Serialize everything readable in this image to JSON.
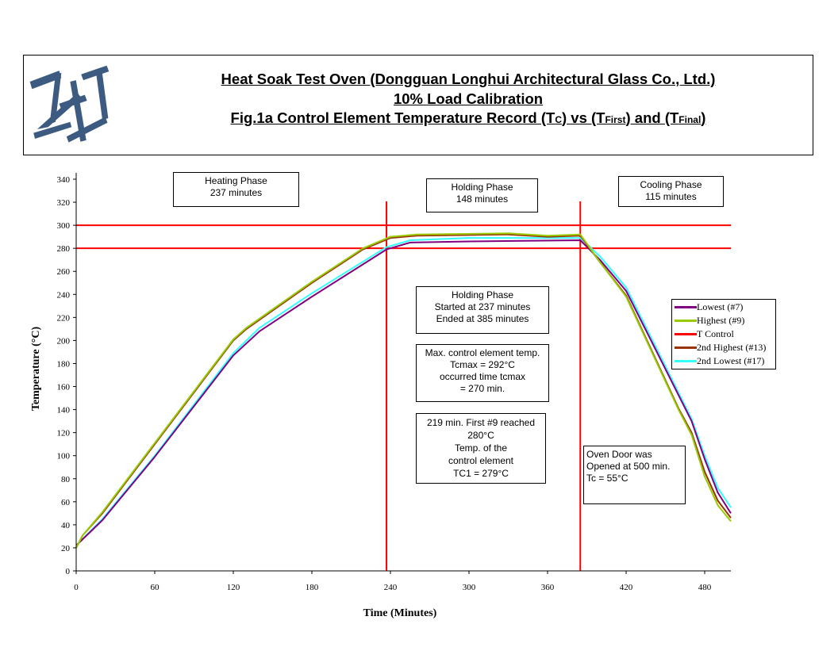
{
  "header": {
    "logo_text": "JAS",
    "title_line1": "Heat Soak Test Oven (Dongguan Longhui Architectural Glass Co., Ltd.)",
    "title_line2": "10% Load Calibration",
    "title_line3": {
      "a": "Fig.1a Control Element Temperature Record (T",
      "b": "C",
      "c": ") vs (T",
      "d": "First",
      "e": ") and (T",
      "f": "Final",
      "g": ")"
    }
  },
  "annotations": {
    "heating": [
      "Heating Phase",
      "237 minutes"
    ],
    "holding": [
      "Holding Phase",
      "148 minutes"
    ],
    "cooling": [
      "Cooling Phase",
      "115 minutes"
    ],
    "holding_info": [
      "Holding Phase",
      "Started at 237 minutes",
      "Ended at 385 minutes"
    ],
    "max_temp": [
      "Max. control element temp.",
      "Tcmax = 292°C",
      "occurred time tcmax",
      "= 270 min."
    ],
    "first_reach": [
      "219 min. First #9 reached",
      "280°C",
      "Temp. of the",
      "control element",
      "TC1 =  279°C"
    ],
    "oven_door": [
      "Oven Door was",
      "Opened at 500 min.",
      "Tc = 55°C"
    ]
  },
  "chart_data": {
    "type": "line",
    "title": "",
    "xlabel": "Time (Minutes)",
    "ylabel": "Temperature (°C)",
    "xlim": [
      0,
      500
    ],
    "ylim": [
      0,
      340
    ],
    "xticks": [
      0,
      60,
      120,
      180,
      240,
      300,
      360,
      420,
      480
    ],
    "yticks": [
      0,
      20,
      40,
      60,
      80,
      100,
      120,
      140,
      160,
      180,
      200,
      220,
      240,
      260,
      280,
      300,
      320,
      340
    ],
    "grid": false,
    "legend_position": "right",
    "reference_lines": {
      "horizontal": [
        280,
        300
      ],
      "vertical": [
        237,
        385
      ],
      "color": "#ff0000"
    },
    "series": [
      {
        "name": "Lowest (#7)",
        "color": "#800080",
        "x": [
          0,
          20,
          60,
          120,
          140,
          180,
          237,
          255,
          300,
          385,
          400,
          420,
          470,
          480,
          490,
          500
        ],
        "y": [
          22,
          44,
          99,
          187,
          208,
          238,
          279,
          285,
          286,
          287,
          270,
          243,
          130,
          97,
          68,
          50
        ]
      },
      {
        "name": "Highest (#9)",
        "color": "#99cc00",
        "x": [
          0,
          5,
          20,
          60,
          120,
          130,
          180,
          219,
          240,
          260,
          330,
          360,
          385,
          400,
          420,
          460,
          470,
          480,
          490,
          500
        ],
        "y": [
          20,
          31,
          51,
          111,
          201,
          211,
          251,
          280,
          290,
          292,
          293,
          291,
          292,
          268,
          238,
          140,
          118,
          82,
          57,
          43
        ]
      },
      {
        "name": "T Control",
        "color": "#ff0000",
        "x": [],
        "y": []
      },
      {
        "name": "2nd Highest (#13)",
        "color": "#993300",
        "x": [
          0,
          5,
          20,
          60,
          120,
          130,
          180,
          219,
          240,
          260,
          330,
          360,
          385,
          400,
          420,
          460,
          470,
          480,
          490,
          500
        ],
        "y": [
          20,
          31,
          50,
          110,
          200,
          210,
          250,
          279,
          289,
          291,
          292,
          290,
          291,
          268,
          239,
          141,
          120,
          86,
          61,
          46
        ]
      },
      {
        "name": "2nd Lowest (#17)",
        "color": "#33ffff",
        "x": [
          0,
          20,
          60,
          120,
          140,
          180,
          237,
          255,
          300,
          385,
          400,
          420,
          470,
          480,
          490,
          500
        ],
        "y": [
          22,
          45,
          100,
          189,
          211,
          241,
          281,
          287,
          289,
          289,
          273,
          246,
          132,
          100,
          72,
          55
        ]
      }
    ]
  }
}
